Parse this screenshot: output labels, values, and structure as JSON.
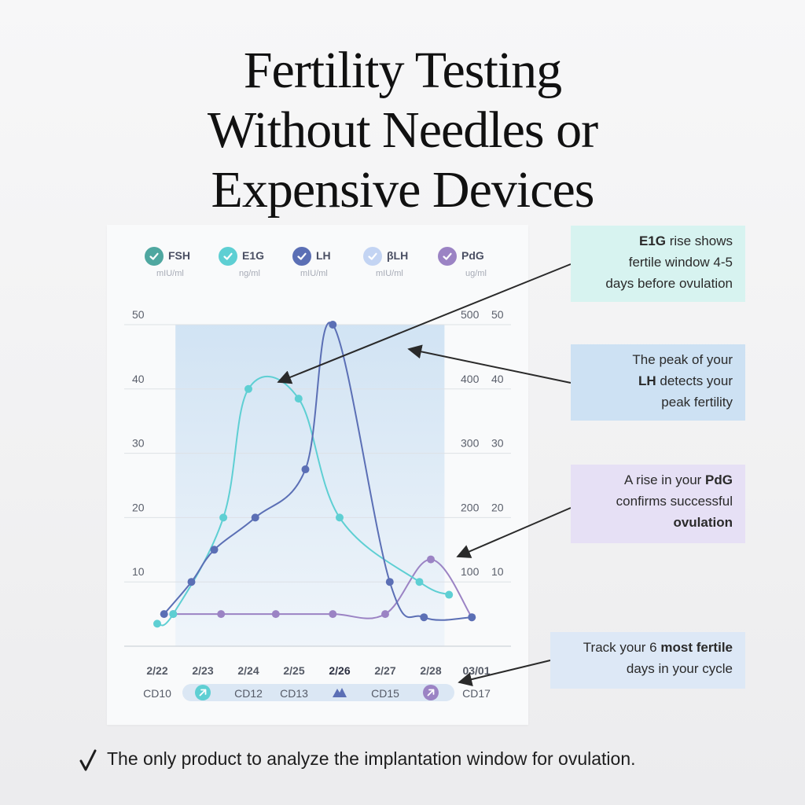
{
  "title": {
    "line1": "Fertility Testing",
    "line2": "Without Needles or",
    "line3": "Expensive Devices"
  },
  "legend": [
    {
      "name": "FSH",
      "unit": "mIU/ml",
      "color": "#4fa7a0",
      "icon": "check-circle-icon"
    },
    {
      "name": "E1G",
      "unit": "ng/ml",
      "color": "#5ecfd3",
      "icon": "check-circle-icon"
    },
    {
      "name": "LH",
      "unit": "mIU/ml",
      "color": "#5b6fb5",
      "icon": "check-circle-icon"
    },
    {
      "name": "βLH",
      "unit": "mIU/ml",
      "color": "#c3d4f3",
      "icon": "check-circle-icon"
    },
    {
      "name": "PdG",
      "unit": "ug/ml",
      "color": "#9b83c4",
      "icon": "check-circle-icon"
    }
  ],
  "chart_data": {
    "type": "line",
    "x_dates": [
      "2/22",
      "2/23",
      "2/24",
      "2/25",
      "2/26",
      "2/27",
      "2/28",
      "03/01"
    ],
    "x_cycle_days": [
      "CD10",
      "",
      "CD12",
      "CD13",
      "",
      "CD15",
      "",
      "CD17"
    ],
    "left_ticks": [
      "10",
      "20",
      "30",
      "40",
      "50"
    ],
    "right_ticks_outer": [
      "100",
      "200",
      "300",
      "400",
      "500"
    ],
    "right_ticks_inner": [
      "10",
      "20",
      "30",
      "40",
      "50"
    ],
    "ylim": [
      0,
      50
    ],
    "grid": true,
    "shaded_window": {
      "from_x": 0.4,
      "to_x": 6.3,
      "label": "fertile window"
    },
    "series": [
      {
        "name": "E1G",
        "color": "#5ecfd3",
        "x": [
          0,
          0.35,
          1.45,
          2.0,
          3.1,
          4.0,
          5.75,
          6.4
        ],
        "y": [
          3.5,
          5,
          20,
          40,
          38.5,
          20,
          10,
          8
        ]
      },
      {
        "name": "LH",
        "color": "#5b6fb5",
        "x": [
          0.15,
          0.75,
          1.25,
          2.15,
          3.25,
          3.85,
          5.1,
          5.85,
          6.9
        ],
        "y": [
          5,
          10,
          15,
          20,
          27.5,
          50,
          10,
          4.5,
          4.5
        ]
      },
      {
        "name": "PdG",
        "color": "#9b83c4",
        "x": [
          0.35,
          1.4,
          2.6,
          3.85,
          5.0,
          6.0,
          6.9
        ],
        "y": [
          5,
          5,
          5,
          5,
          5,
          13.5,
          4.5
        ]
      }
    ],
    "pill_icons": [
      {
        "position": 1,
        "icon": "arrow-up-right-icon",
        "color": "#5ecfd3"
      },
      {
        "position": 4,
        "icon": "peak-triangle-icon",
        "color": "#5b6fb5"
      },
      {
        "position": 6,
        "icon": "arrow-up-right-icon",
        "color": "#9b83c4"
      }
    ]
  },
  "callouts": [
    {
      "pre": "",
      "bold": "E1G",
      "post": " rise shows fertile window 4-5 days before ovulation",
      "bg": "#d7f3f0",
      "lines": [
        "E1G rise shows",
        "fertile window 4-5",
        "days before ovulation"
      ]
    },
    {
      "pre": "",
      "bold": "",
      "post": "",
      "bg": "#cde1f3",
      "lines": [
        "The peak of your",
        "LH detects your",
        "peak fertility"
      ]
    },
    {
      "pre": "",
      "bold": "",
      "post": "",
      "bg": "#e6e0f5",
      "lines": [
        "A rise in your PdG",
        "confirms successful",
        "ovulation"
      ]
    },
    {
      "pre": "",
      "bold": "",
      "post": "",
      "bg": "#dde8f6",
      "lines": [
        "Track your 6 most fertile",
        "days in your cycle"
      ]
    }
  ],
  "footer": {
    "icon": "checkmark-icon",
    "text": "The only product to analyze the implantation window for ovulation."
  }
}
